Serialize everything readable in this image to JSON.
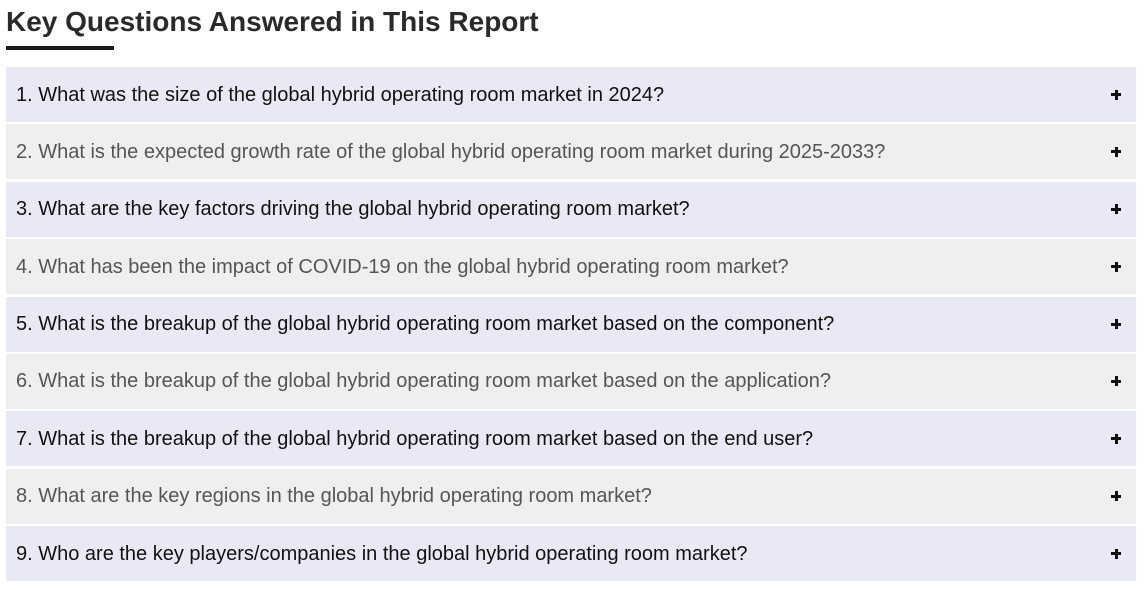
{
  "section": {
    "title": "Key Questions Answered in This Report"
  },
  "faq": {
    "toggle_icon": "plus-icon",
    "colors": {
      "odd_row_bg": "#e8e9f5",
      "even_row_bg": "#efefef",
      "odd_text": "#111111",
      "even_text": "#555555"
    },
    "items": [
      {
        "question": "1. What was the size of the global hybrid operating room market in 2024?"
      },
      {
        "question": "2. What is the expected growth rate of the global hybrid operating room market during 2025-2033?"
      },
      {
        "question": "3. What are the key factors driving the global hybrid operating room market?"
      },
      {
        "question": "4. What has been the impact of COVID-19 on the global hybrid operating room market?"
      },
      {
        "question": "5. What is the breakup of the global hybrid operating room market based on the component?"
      },
      {
        "question": "6. What is the breakup of the global hybrid operating room market based on the application?"
      },
      {
        "question": "7. What is the breakup of the global hybrid operating room market based on the end user?"
      },
      {
        "question": "8. What are the key regions in the global hybrid operating room market?"
      },
      {
        "question": "9. Who are the key players/companies in the global hybrid operating room market?"
      }
    ]
  }
}
